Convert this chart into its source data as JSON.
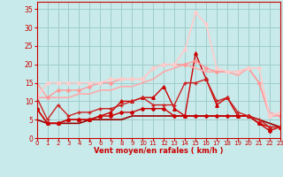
{
  "bg_color": "#c8eaea",
  "grid_color": "#a0cccc",
  "xlabel": "Vent moyen/en rafales ( km/h )",
  "xlabel_color": "#cc0000",
  "tick_color": "#cc0000",
  "ylim": [
    0,
    37
  ],
  "xlim": [
    0,
    23
  ],
  "yticks": [
    0,
    5,
    10,
    15,
    20,
    25,
    30,
    35
  ],
  "xticks": [
    0,
    1,
    2,
    3,
    4,
    5,
    6,
    7,
    8,
    9,
    10,
    11,
    12,
    13,
    14,
    15,
    16,
    17,
    18,
    19,
    20,
    21,
    22,
    23
  ],
  "series": [
    {
      "y": [
        5,
        4,
        4,
        4,
        4,
        5,
        5,
        5,
        5,
        6,
        6,
        6,
        6,
        6,
        6,
        6,
        6,
        6,
        6,
        6,
        6,
        5,
        4,
        3
      ],
      "color": "#990000",
      "lw": 1.2,
      "marker": null,
      "ms": 0
    },
    {
      "y": [
        8,
        4,
        4,
        5,
        5,
        5,
        6,
        6,
        7,
        7,
        8,
        8,
        8,
        6,
        6,
        6,
        6,
        6,
        6,
        6,
        6,
        4,
        2,
        3
      ],
      "color": "#cc0000",
      "lw": 1.0,
      "marker": "D",
      "ms": 2.0
    },
    {
      "y": [
        8,
        4,
        4,
        5,
        5,
        5,
        6,
        7,
        10,
        10,
        11,
        11,
        14,
        8,
        6,
        23,
        16,
        9,
        11,
        6,
        6,
        4,
        3,
        3
      ],
      "color": "#cc0000",
      "lw": 1.0,
      "marker": "^",
      "ms": 2.5
    },
    {
      "y": [
        11,
        5,
        9,
        6,
        7,
        7,
        8,
        8,
        9,
        10,
        11,
        9,
        9,
        9,
        15,
        15,
        16,
        10,
        11,
        7,
        6,
        5,
        3,
        3
      ],
      "color": "#cc2222",
      "lw": 1.0,
      "marker": "+",
      "ms": 3.5
    },
    {
      "y": [
        15,
        11,
        11,
        11,
        12,
        12,
        13,
        13,
        14,
        14,
        15,
        16,
        18,
        19,
        20,
        19,
        18,
        18,
        18,
        17,
        19,
        15,
        7,
        6
      ],
      "color": "#ffaaaa",
      "lw": 1.2,
      "marker": null,
      "ms": 0
    },
    {
      "y": [
        11,
        11,
        13,
        13,
        13,
        14,
        15,
        15,
        16,
        16,
        16,
        19,
        20,
        20,
        20,
        21,
        19,
        18,
        18,
        18,
        19,
        15,
        6,
        6
      ],
      "color": "#ff9999",
      "lw": 1.0,
      "marker": "D",
      "ms": 2.0
    },
    {
      "y": [
        11,
        15,
        15,
        15,
        15,
        15,
        15,
        16,
        16,
        16,
        16,
        19,
        20,
        20,
        24,
        34,
        31,
        19,
        18,
        18,
        19,
        19,
        6,
        7
      ],
      "color": "#ffcccc",
      "lw": 1.2,
      "marker": "D",
      "ms": 2.0
    }
  ]
}
